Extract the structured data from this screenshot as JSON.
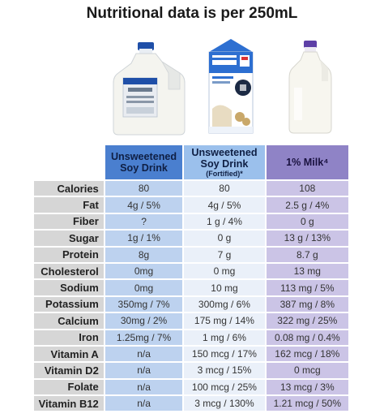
{
  "title": "Nutritional data is per 250mL",
  "products": [
    {
      "name": "Unsweetened",
      "name2": "Soy Drink",
      "note": ""
    },
    {
      "name": "Unsweetened",
      "name2": "Soy Drink",
      "note": "(Fortified)*"
    },
    {
      "name": "1% Milk⁴",
      "name2": "",
      "note": ""
    }
  ],
  "rows": [
    {
      "label": "Calories",
      "values": [
        "80",
        "80",
        "108"
      ]
    },
    {
      "label": "Fat",
      "values": [
        "4g / 5%",
        "4g / 5%",
        "2.5 g / 4%"
      ]
    },
    {
      "label": "Fiber",
      "values": [
        "?",
        "1 g / 4%",
        "0 g"
      ]
    },
    {
      "label": "Sugar",
      "values": [
        "1g / 1%",
        "0 g",
        "13 g / 13%"
      ]
    },
    {
      "label": "Protein",
      "values": [
        "8g",
        "7 g",
        "8.7 g"
      ]
    },
    {
      "label": "Cholesterol",
      "values": [
        "0mg",
        "0 mg",
        "13 mg"
      ]
    },
    {
      "label": "Sodium",
      "values": [
        "0mg",
        "10 mg",
        "113 mg / 5%"
      ]
    },
    {
      "label": "Potassium",
      "values": [
        "350mg / 7%",
        "300mg / 6%",
        "387 mg / 8%"
      ]
    },
    {
      "label": "Calcium",
      "values": [
        "30mg / 2%",
        "175 mg / 14%",
        "322 mg / 25%"
      ]
    },
    {
      "label": "Iron",
      "values": [
        "1.25mg / 7%",
        "1 mg / 6%",
        "0.08 mg / 0.4%"
      ]
    },
    {
      "label": "Vitamin A",
      "values": [
        "n/a",
        "150 mcg / 17%",
        "162 mcg / 18%"
      ]
    },
    {
      "label": "Vitamin D2",
      "values": [
        "n/a",
        "3 mcg / 15%",
        "0 mcg"
      ]
    },
    {
      "label": "Folate",
      "values": [
        "n/a",
        "100 mcg / 25%",
        "13 mcg / 3%"
      ]
    },
    {
      "label": "Vitamin B12",
      "values": [
        "n/a",
        "3 mcg / 130%",
        "1.21 mcg / 50%"
      ]
    }
  ]
}
